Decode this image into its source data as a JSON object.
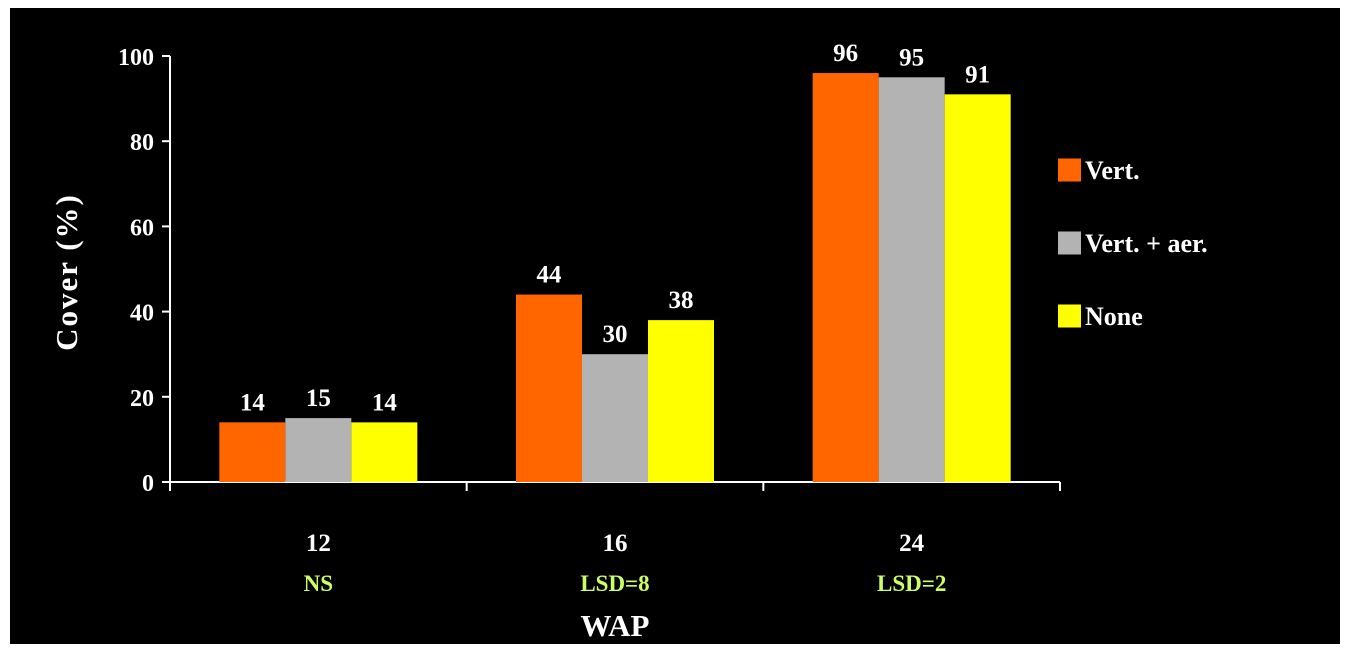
{
  "chart_data": {
    "type": "bar",
    "categories": [
      "12",
      "16",
      "24"
    ],
    "category_notes": [
      "NS",
      "LSD=8",
      "LSD=2"
    ],
    "series": [
      {
        "name": "Vert.",
        "values": [
          14,
          44,
          96
        ],
        "color": "#ff6600"
      },
      {
        "name": "Vert. + aer.",
        "values": [
          15,
          30,
          95
        ],
        "color": "#b3b3b3"
      },
      {
        "name": "None",
        "values": [
          14,
          38,
          91
        ],
        "color": "#ffff00"
      }
    ],
    "xlabel": "WAP",
    "ylabel": "Cover (%)",
    "ylim": [
      0,
      100
    ],
    "yticks": [
      0,
      20,
      40,
      60,
      80,
      100
    ],
    "grid": false,
    "legend": "right",
    "background": "#000000",
    "text_color": "#ffffff",
    "note_color": "#ccff66"
  }
}
